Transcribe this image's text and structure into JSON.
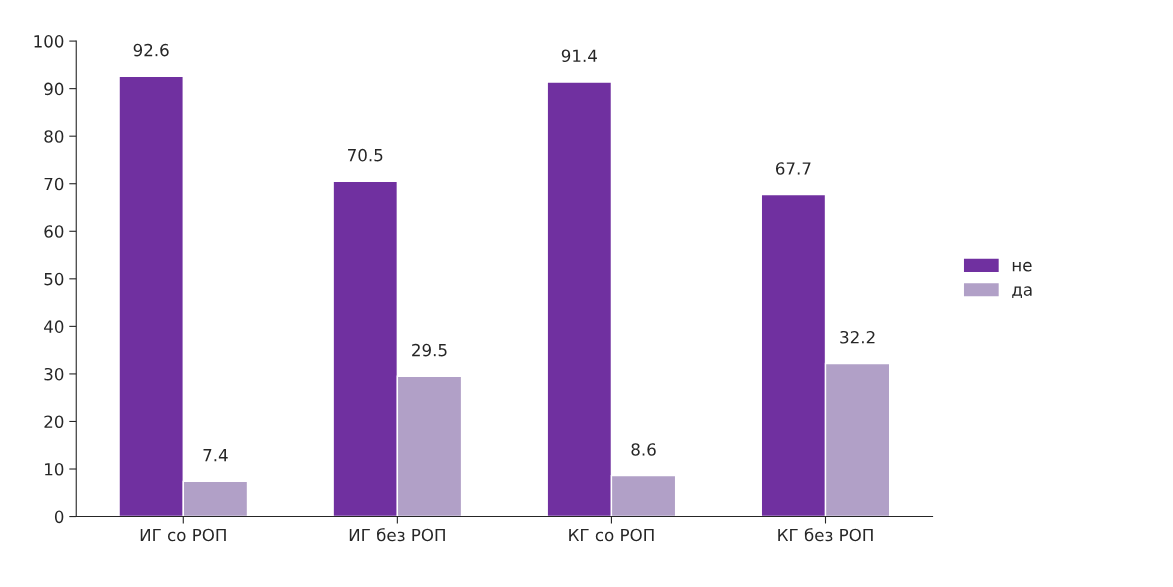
{
  "chart_data": {
    "type": "bar",
    "categories": [
      "ИГ со РОП",
      "ИГ без РОП",
      "КГ со РОП",
      "КГ без РОП"
    ],
    "series": [
      {
        "name": "не",
        "color": "#7030a0",
        "values": [
          92.6,
          70.5,
          91.4,
          67.7
        ]
      },
      {
        "name": "да",
        "color": "#b1a0c7",
        "values": [
          7.4,
          29.5,
          8.6,
          32.2
        ]
      }
    ],
    "ylim": [
      0,
      100
    ],
    "yticks": [
      0,
      10,
      20,
      30,
      40,
      50,
      60,
      70,
      80,
      90,
      100
    ],
    "data_labels": true,
    "grid": false,
    "legend": "right"
  }
}
